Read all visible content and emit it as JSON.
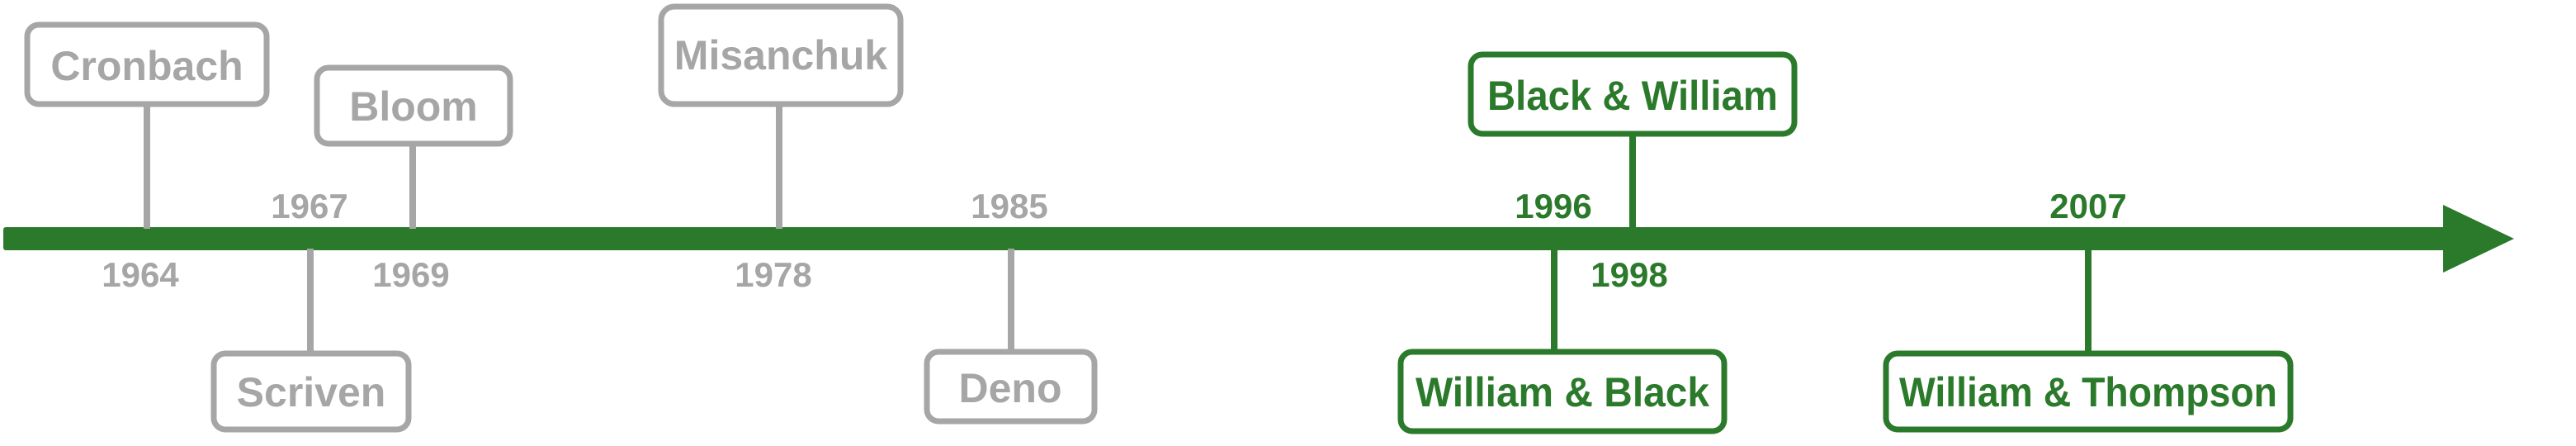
{
  "colors": {
    "gray": "#a6a6a6",
    "green": "#2b7a2b",
    "background": "#ffffff"
  },
  "events": [
    {
      "id": "cronbach",
      "label": "Cronbach",
      "year": "1964",
      "side": "above",
      "color": "gray"
    },
    {
      "id": "scriven",
      "label": "Scriven",
      "year": "1967",
      "side": "below",
      "color": "gray"
    },
    {
      "id": "bloom",
      "label": "Bloom",
      "year": "1969",
      "side": "above",
      "color": "gray"
    },
    {
      "id": "misanchuk",
      "label": "Misanchuk",
      "year": "1978",
      "side": "above",
      "color": "gray"
    },
    {
      "id": "deno",
      "label": "Deno",
      "year": "1985",
      "side": "below",
      "color": "gray"
    },
    {
      "id": "william-black",
      "label": "William & Black",
      "year": "1996",
      "side": "below",
      "color": "green"
    },
    {
      "id": "black-william",
      "label": "Black & William",
      "year": "1998",
      "side": "above",
      "color": "green"
    },
    {
      "id": "william-thompson",
      "label": "William & Thompson",
      "year": "2007",
      "side": "below",
      "color": "green"
    }
  ]
}
